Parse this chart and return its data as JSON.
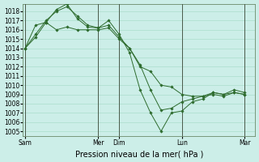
{
  "title": "Pression niveau de la mer( hPa )",
  "bg_color": "#cceee8",
  "grid_color": "#aaddcc",
  "line_color": "#2d6b2d",
  "marker_color": "#2d6b2d",
  "ylim": [
    1004.5,
    1018.8
  ],
  "yticks": [
    1005,
    1006,
    1007,
    1008,
    1009,
    1010,
    1011,
    1012,
    1013,
    1014,
    1015,
    1016,
    1017,
    1018
  ],
  "xlim": [
    -0.1,
    11.0
  ],
  "xtick_labels": [
    "Sam",
    "Mer",
    "Dim",
    "Lun",
    "Mar"
  ],
  "xtick_positions": [
    0.0,
    3.5,
    4.5,
    7.5,
    10.5
  ],
  "vlines": [
    0.0,
    3.5,
    4.5,
    7.5,
    10.5
  ],
  "series": [
    {
      "x": [
        0.0,
        0.5,
        1.0,
        1.5,
        2.0,
        2.5,
        3.0,
        3.5,
        4.0,
        4.5,
        5.0,
        5.5,
        6.0,
        6.5,
        7.0,
        7.5,
        8.0,
        8.5,
        9.0,
        9.5,
        10.0,
        10.5
      ],
      "y": [
        1014.0,
        1016.5,
        1016.8,
        1016.0,
        1016.3,
        1016.0,
        1016.0,
        1016.0,
        1016.2,
        1015.0,
        1014.0,
        1012.0,
        1011.5,
        1010.0,
        1009.8,
        1009.0,
        1008.8,
        1008.8,
        1009.2,
        1009.0,
        1009.2,
        1009.0
      ]
    },
    {
      "x": [
        0.0,
        0.5,
        1.0,
        1.5,
        2.0,
        2.5,
        3.0,
        3.5,
        4.0,
        4.5,
        5.0,
        5.5,
        6.0,
        6.5,
        7.0,
        7.5,
        8.0,
        8.5,
        9.0,
        9.5,
        10.0,
        10.5
      ],
      "y": [
        1014.0,
        1015.5,
        1017.0,
        1018.0,
        1018.5,
        1017.5,
        1016.5,
        1016.2,
        1017.0,
        1015.5,
        1013.5,
        1009.5,
        1007.0,
        1005.0,
        1007.0,
        1007.2,
        1008.2,
        1008.5,
        1009.2,
        1009.0,
        1009.5,
        1009.2
      ]
    },
    {
      "x": [
        0.0,
        0.5,
        1.0,
        1.5,
        2.0,
        2.5,
        3.0,
        3.5,
        4.0,
        4.5,
        5.0,
        5.5,
        6.0,
        6.5,
        7.0,
        7.5,
        8.0,
        8.5,
        9.0,
        9.5,
        10.0,
        10.5
      ],
      "y": [
        1014.0,
        1015.2,
        1016.8,
        1018.2,
        1018.8,
        1017.2,
        1016.3,
        1016.2,
        1016.5,
        1015.2,
        1014.0,
        1012.2,
        1009.5,
        1007.3,
        1007.5,
        1008.2,
        1008.5,
        1008.8,
        1009.0,
        1008.8,
        1009.2,
        1009.0
      ]
    }
  ],
  "ylabel_fontsize": 6.0,
  "tick_fontsize": 5.5,
  "title_fontsize": 7.0
}
